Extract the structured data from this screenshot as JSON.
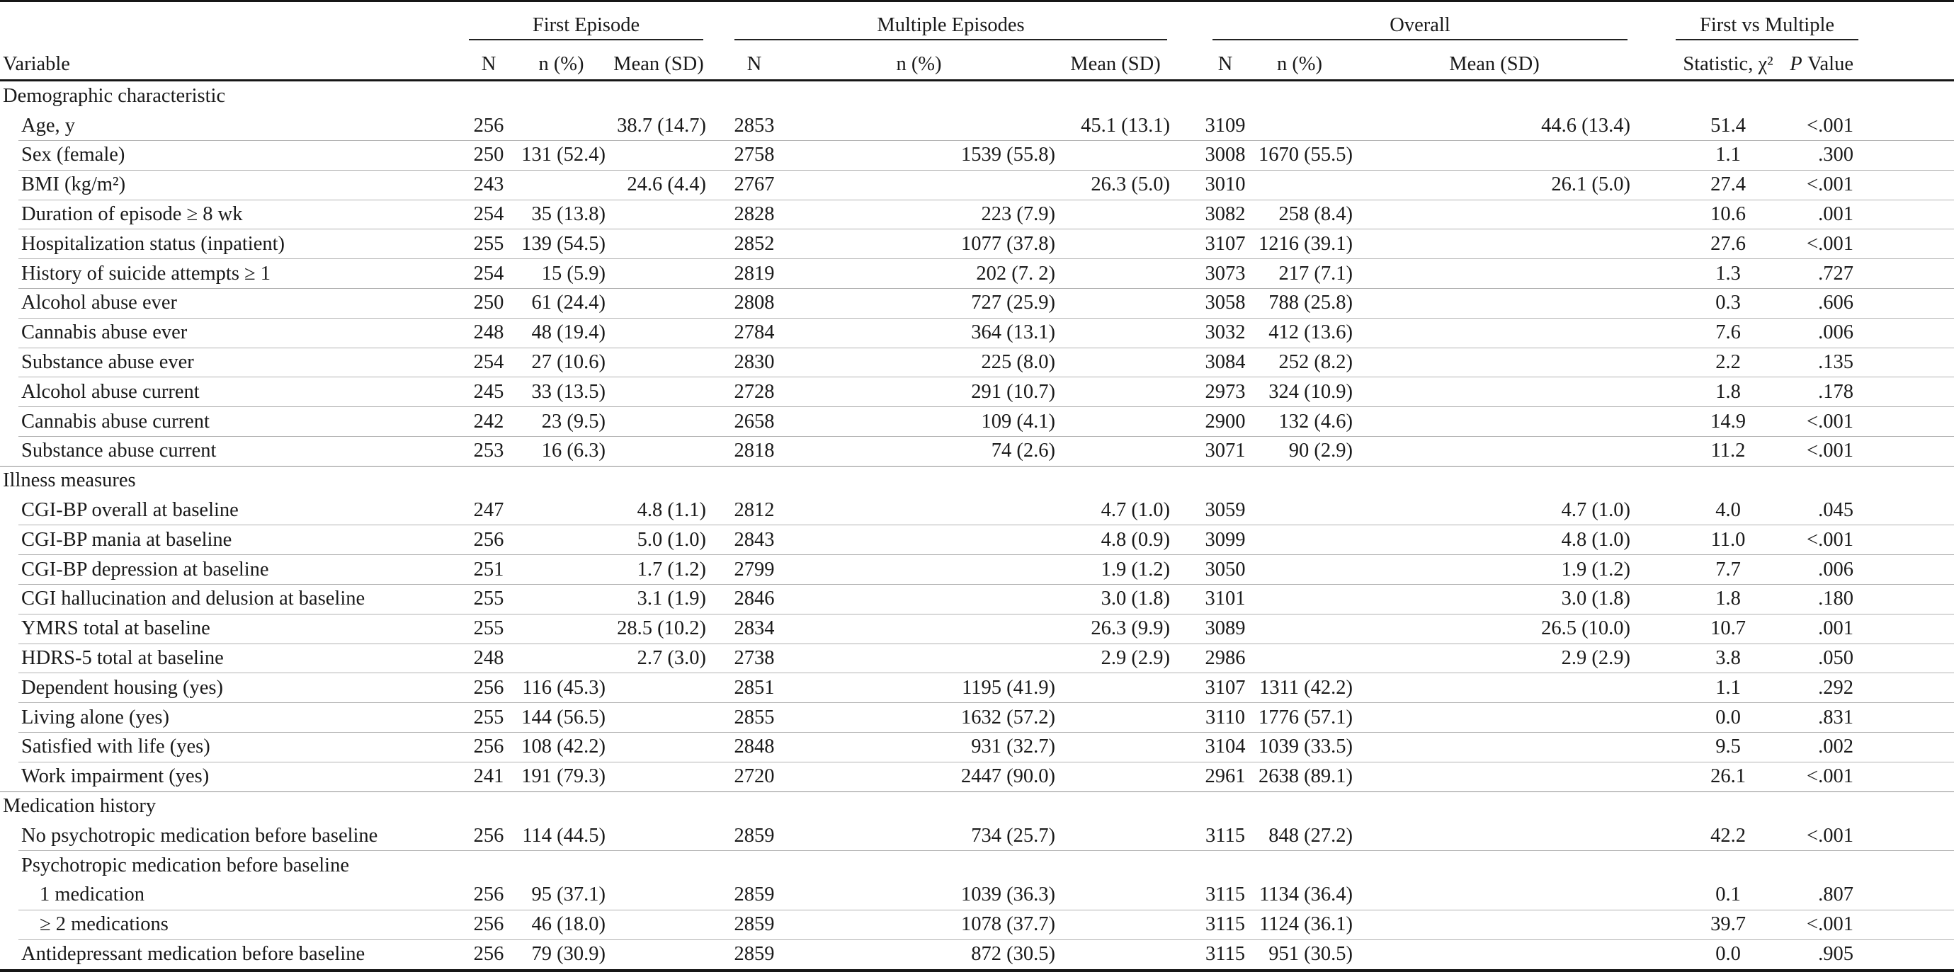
{
  "header": {
    "variable": "Variable",
    "groups": [
      {
        "label": "First Episode",
        "cols": [
          "N",
          "n (%)",
          "Mean (SD)"
        ]
      },
      {
        "label": "Multiple Episodes",
        "cols": [
          "N",
          "n (%)",
          "Mean (SD)"
        ]
      },
      {
        "label": "Overall",
        "cols": [
          "N",
          "n (%)",
          "Mean (SD)"
        ]
      },
      {
        "label": "First vs Multiple",
        "cols": [
          "Statistic, χ²"
        ]
      }
    ],
    "p_value": [
      "P",
      "Value"
    ]
  },
  "table": {
    "rows": [
      {
        "type": "section",
        "label": "Demographic characteristic",
        "topline": false
      },
      {
        "type": "data",
        "label": "Age, y",
        "cells": [
          "256",
          "",
          "38.7 (14.7)",
          "2853",
          "",
          "45.1 (13.1)",
          "3109",
          "",
          "44.6 (13.4)",
          "51.4",
          "<.001"
        ]
      },
      {
        "type": "data",
        "label": "Sex (female)",
        "cells": [
          "250",
          "131 (52.4)",
          "",
          "2758",
          "1539 (55.8)",
          "",
          "3008",
          "1670 (55.5)",
          "",
          "1.1",
          ".300"
        ]
      },
      {
        "type": "data",
        "label": "BMI (kg/m²)",
        "cells": [
          "243",
          "",
          "24.6 (4.4)",
          "2767",
          "",
          "26.3 (5.0)",
          "3010",
          "",
          "26.1 (5.0)",
          "27.4",
          "<.001"
        ]
      },
      {
        "type": "data",
        "label": "Duration of episode ≥ 8 wk",
        "cells": [
          "254",
          "35 (13.8)",
          "",
          "2828",
          "223 (7.9)",
          "",
          "3082",
          "258 (8.4)",
          "",
          "10.6",
          ".001"
        ]
      },
      {
        "type": "data",
        "label": "Hospitalization status (inpatient)",
        "cells": [
          "255",
          "139 (54.5)",
          "",
          "2852",
          "1077 (37.8)",
          "",
          "3107",
          "1216 (39.1)",
          "",
          "27.6",
          "<.001"
        ]
      },
      {
        "type": "data",
        "label": "History of suicide attempts ≥ 1",
        "cells": [
          "254",
          "15 (5.9)",
          "",
          "2819",
          "202 (7. 2)",
          "",
          "3073",
          "217 (7.1)",
          "",
          "1.3",
          ".727"
        ]
      },
      {
        "type": "data",
        "label": "Alcohol abuse ever",
        "cells": [
          "250",
          "61 (24.4)",
          "",
          "2808",
          "727 (25.9)",
          "",
          "3058",
          "788 (25.8)",
          "",
          "0.3",
          ".606"
        ]
      },
      {
        "type": "data",
        "label": "Cannabis abuse ever",
        "cells": [
          "248",
          "48 (19.4)",
          "",
          "2784",
          "364 (13.1)",
          "",
          "3032",
          "412 (13.6)",
          "",
          "7.6",
          ".006"
        ]
      },
      {
        "type": "data",
        "label": "Substance abuse ever",
        "cells": [
          "254",
          "27 (10.6)",
          "",
          "2830",
          "225 (8.0)",
          "",
          "3084",
          "252 (8.2)",
          "",
          "2.2",
          ".135"
        ]
      },
      {
        "type": "data",
        "label": "Alcohol abuse current",
        "cells": [
          "245",
          "33 (13.5)",
          "",
          "2728",
          "291 (10.7)",
          "",
          "2973",
          "324 (10.9)",
          "",
          "1.8",
          ".178"
        ]
      },
      {
        "type": "data",
        "label": "Cannabis abuse current",
        "cells": [
          "242",
          "23 (9.5)",
          "",
          "2658",
          "109 (4.1)",
          "",
          "2900",
          "132 (4.6)",
          "",
          "14.9",
          "<.001"
        ]
      },
      {
        "type": "data",
        "label": "Substance abuse current",
        "rule": false,
        "cells": [
          "253",
          "16 (6.3)",
          "",
          "2818",
          "74 (2.6)",
          "",
          "3071",
          "90 (2.9)",
          "",
          "11.2",
          "<.001"
        ]
      },
      {
        "type": "section",
        "label": "Illness measures",
        "topline": true
      },
      {
        "type": "data",
        "label": "CGI-BP overall at baseline",
        "cells": [
          "247",
          "",
          "4.8 (1.1)",
          "2812",
          "",
          "4.7 (1.0)",
          "3059",
          "",
          "4.7 (1.0)",
          "4.0",
          ".045"
        ]
      },
      {
        "type": "data",
        "label": "CGI-BP mania at baseline",
        "cells": [
          "256",
          "",
          "5.0 (1.0)",
          "2843",
          "",
          "4.8 (0.9)",
          "3099",
          "",
          "4.8 (1.0)",
          "11.0",
          "<.001"
        ]
      },
      {
        "type": "data",
        "label": "CGI-BP depression at baseline",
        "cells": [
          "251",
          "",
          "1.7 (1.2)",
          "2799",
          "",
          "1.9 (1.2)",
          "3050",
          "",
          "1.9 (1.2)",
          "7.7",
          ".006"
        ]
      },
      {
        "type": "data",
        "label": "CGI hallucination and delusion at baseline",
        "cells": [
          "255",
          "",
          "3.1 (1.9)",
          "2846",
          "",
          "3.0 (1.8)",
          "3101",
          "",
          "3.0 (1.8)",
          "1.8",
          ".180"
        ]
      },
      {
        "type": "data",
        "label": "YMRS total at baseline",
        "cells": [
          "255",
          "",
          "28.5 (10.2)",
          "2834",
          "",
          "26.3 (9.9)",
          "3089",
          "",
          "26.5 (10.0)",
          "10.7",
          ".001"
        ]
      },
      {
        "type": "data",
        "label": "HDRS-5 total at baseline",
        "cells": [
          "248",
          "",
          "2.7 (3.0)",
          "2738",
          "",
          "2.9 (2.9)",
          "2986",
          "",
          "2.9 (2.9)",
          "3.8",
          ".050"
        ]
      },
      {
        "type": "data",
        "label": "Dependent housing (yes)",
        "cells": [
          "256",
          "116 (45.3)",
          "",
          "2851",
          "1195 (41.9)",
          "",
          "3107",
          "1311 (42.2)",
          "",
          "1.1",
          ".292"
        ]
      },
      {
        "type": "data",
        "label": "Living alone (yes)",
        "cells": [
          "255",
          "144 (56.5)",
          "",
          "2855",
          "1632 (57.2)",
          "",
          "3110",
          "1776 (57.1)",
          "",
          "0.0",
          ".831"
        ]
      },
      {
        "type": "data",
        "label": "Satisfied with life (yes)",
        "cells": [
          "256",
          "108 (42.2)",
          "",
          "2848",
          "931 (32.7)",
          "",
          "3104",
          "1039 (33.5)",
          "",
          "9.5",
          ".002"
        ]
      },
      {
        "type": "data",
        "label": "Work impairment (yes)",
        "rule": false,
        "cells": [
          "241",
          "191 (79.3)",
          "",
          "2720",
          "2447 (90.0)",
          "",
          "2961",
          "2638 (89.1)",
          "",
          "26.1",
          "<.001"
        ]
      },
      {
        "type": "section",
        "label": "Medication history",
        "topline": true
      },
      {
        "type": "data",
        "label": "No psychotropic medication before baseline",
        "cells": [
          "256",
          "114 (44.5)",
          "",
          "2859",
          "734 (25.7)",
          "",
          "3115",
          "848 (27.2)",
          "",
          "42.2",
          "<.001"
        ]
      },
      {
        "type": "subheader",
        "label": "Psychotropic medication before baseline",
        "rule": false
      },
      {
        "type": "data",
        "label": "1 medication",
        "indent": 2,
        "cells": [
          "256",
          "95 (37.1)",
          "",
          "2859",
          "1039 (36.3)",
          "",
          "3115",
          "1134 (36.4)",
          "",
          "0.1",
          ".807"
        ]
      },
      {
        "type": "data",
        "label": "≥ 2 medications",
        "indent": 2,
        "cells": [
          "256",
          "46 (18.0)",
          "",
          "2859",
          "1078 (37.7)",
          "",
          "3115",
          "1124 (36.1)",
          "",
          "39.7",
          "<.001"
        ]
      },
      {
        "type": "data",
        "label": "Antidepressant medication before baseline",
        "rule": false,
        "cells": [
          "256",
          "79 (30.9)",
          "",
          "2859",
          "872 (30.5)",
          "",
          "3115",
          "951 (30.5)",
          "",
          "0.0",
          ".905"
        ]
      }
    ]
  }
}
